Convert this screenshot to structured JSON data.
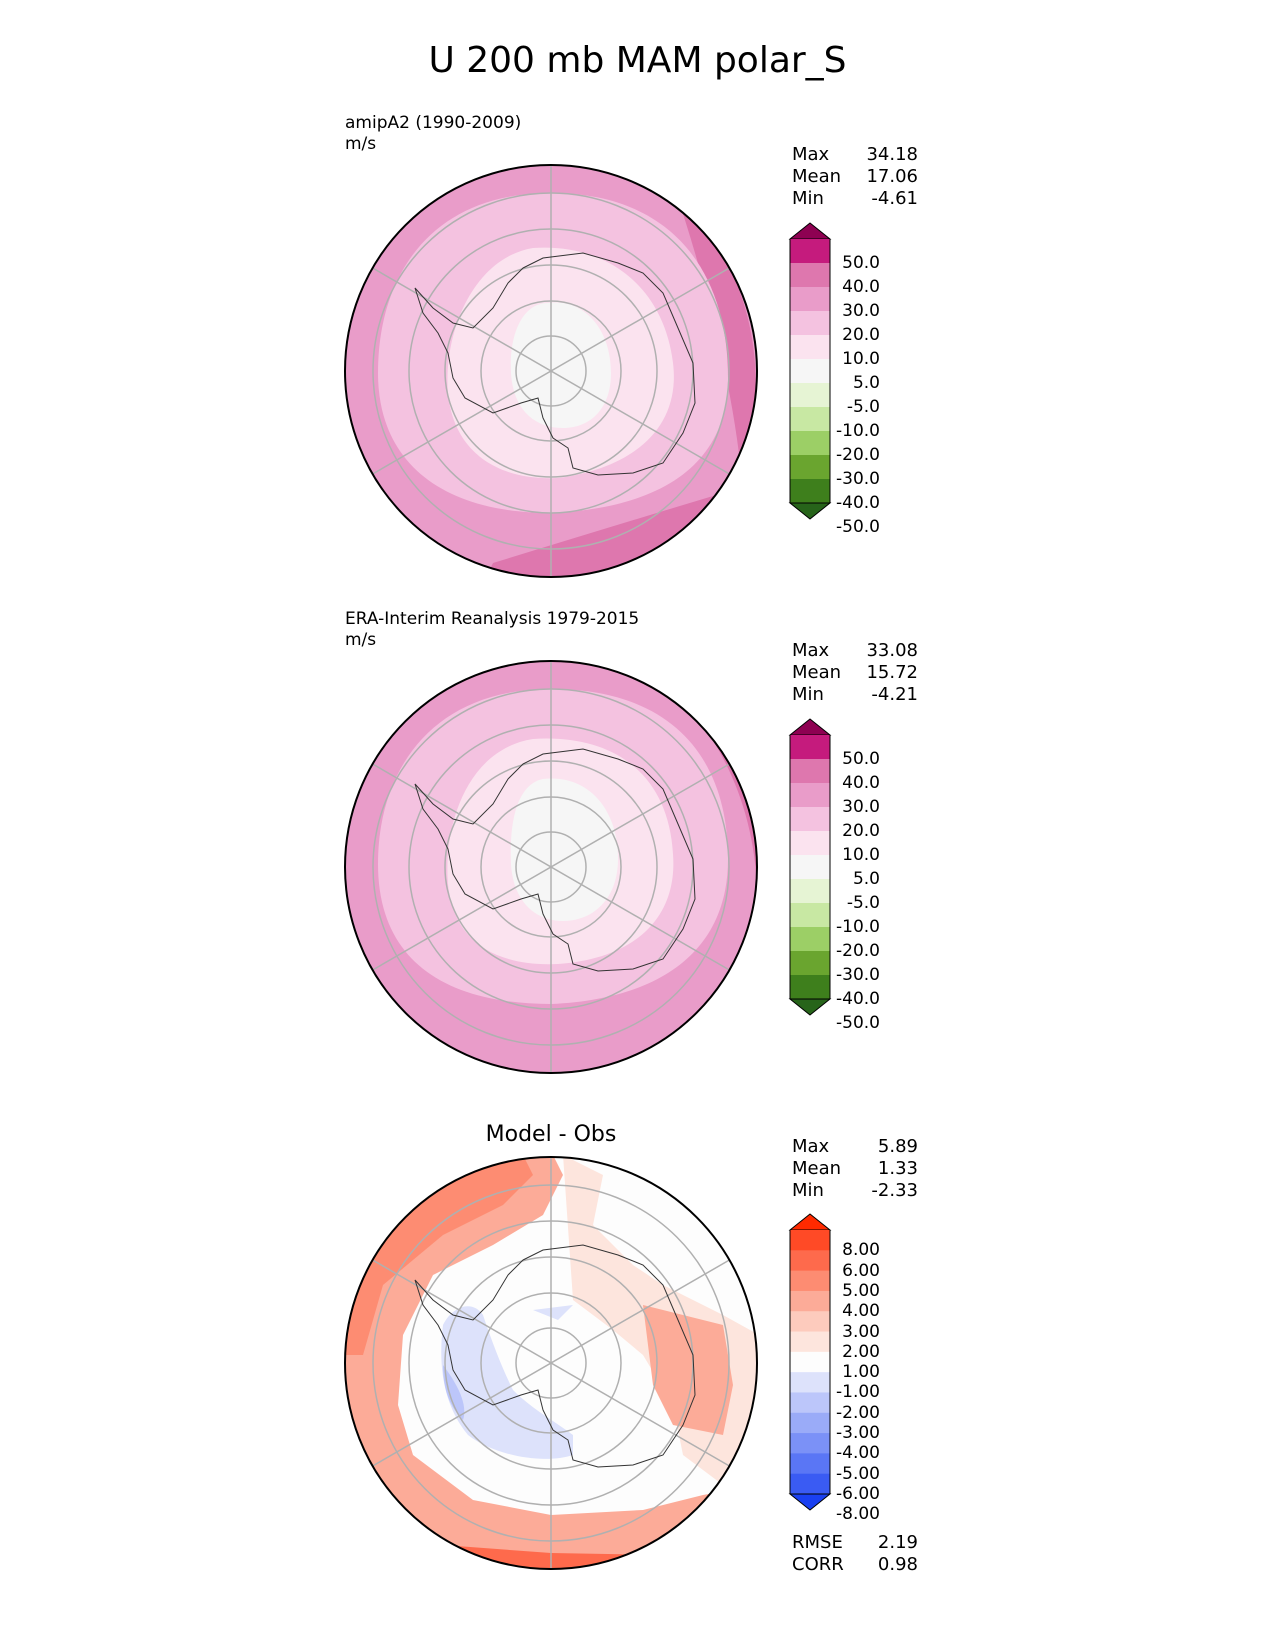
{
  "title": "U 200 mb MAM polar_S",
  "panels": [
    {
      "name": "test",
      "title_lines": [
        "amipA2 (1990-2009)",
        "m/s"
      ],
      "stats": [
        {
          "label": "Max",
          "value": "34.18"
        },
        {
          "label": "Mean",
          "value": "17.06"
        },
        {
          "label": "Min",
          "value": "-4.61"
        }
      ],
      "colorbar": {
        "labels": [
          "50.0",
          "40.0",
          "30.0",
          "20.0",
          "10.0",
          "5.0",
          "-5.0",
          "-10.0",
          "-20.0",
          "-30.0",
          "-40.0",
          "-50.0"
        ],
        "colors": [
          "#8e0152",
          "#c51b7d",
          "#de77ae",
          "#e99cc9",
          "#f4c2e0",
          "#fbe3ef",
          "#f6f6f6",
          "#e6f4d4",
          "#c8e8a3",
          "#9ccf66",
          "#6aa52f",
          "#3e7f1c",
          "#27641a"
        ]
      }
    },
    {
      "name": "reference",
      "title_lines": [
        "ERA-Interim Reanalysis 1979-2015",
        "m/s"
      ],
      "stats": [
        {
          "label": "Max",
          "value": "33.08"
        },
        {
          "label": "Mean",
          "value": "15.72"
        },
        {
          "label": "Min",
          "value": "-4.21"
        }
      ],
      "colorbar": {
        "labels": [
          "50.0",
          "40.0",
          "30.0",
          "20.0",
          "10.0",
          "5.0",
          "-5.0",
          "-10.0",
          "-20.0",
          "-30.0",
          "-40.0",
          "-50.0"
        ],
        "colors": [
          "#8e0152",
          "#c51b7d",
          "#de77ae",
          "#e99cc9",
          "#f4c2e0",
          "#fbe3ef",
          "#f6f6f6",
          "#e6f4d4",
          "#c8e8a3",
          "#9ccf66",
          "#6aa52f",
          "#3e7f1c",
          "#27641a"
        ]
      }
    },
    {
      "name": "difference",
      "centered_title": "Model - Obs",
      "stats": [
        {
          "label": "Max",
          "value": "5.89"
        },
        {
          "label": "Mean",
          "value": "1.33"
        },
        {
          "label": "Min",
          "value": "-2.33"
        }
      ],
      "metrics": [
        {
          "label": "RMSE",
          "value": "2.19"
        },
        {
          "label": "CORR",
          "value": "0.98"
        }
      ],
      "colorbar": {
        "labels": [
          "8.00",
          "6.00",
          "5.00",
          "4.00",
          "3.00",
          "2.00",
          "1.00",
          "-1.00",
          "-2.00",
          "-3.00",
          "-4.00",
          "-5.00",
          "-6.00",
          "-8.00"
        ],
        "colors": [
          "#ff2a00",
          "#ff4a26",
          "#fe6a4c",
          "#fd8c72",
          "#fcab98",
          "#fdcbbd",
          "#fde5dd",
          "#fdfdfd",
          "#dde2fb",
          "#bcc6fa",
          "#9aabf8",
          "#7b91f7",
          "#5a76f5",
          "#3a5bf3",
          "#1a40f1"
        ]
      }
    }
  ],
  "chart_data": [
    {
      "type": "heatmap",
      "subtype": "south-polar-stereographic",
      "title": "amipA2 (1990-2009)",
      "units": "m/s",
      "stats": {
        "max": 34.18,
        "mean": 17.06,
        "min": -4.61
      },
      "levels": [
        -50,
        -40,
        -30,
        -20,
        -10,
        -5,
        5,
        10,
        20,
        30,
        40,
        50
      ],
      "field_bands": [
        {
          "region": "outer-ring",
          "range": [
            20,
            30
          ]
        },
        {
          "region": "edge-patches",
          "range": [
            30,
            40
          ]
        },
        {
          "region": "mid-ring",
          "range": [
            10,
            20
          ]
        },
        {
          "region": "inner-ring",
          "range": [
            5,
            10
          ]
        },
        {
          "region": "core",
          "range": [
            -5,
            5
          ]
        }
      ]
    },
    {
      "type": "heatmap",
      "subtype": "south-polar-stereographic",
      "title": "ERA-Interim Reanalysis 1979-2015",
      "units": "m/s",
      "stats": {
        "max": 33.08,
        "mean": 15.72,
        "min": -4.21
      },
      "levels": [
        -50,
        -40,
        -30,
        -20,
        -10,
        -5,
        5,
        10,
        20,
        30,
        40,
        50
      ],
      "field_bands": [
        {
          "region": "outer-ring",
          "range": [
            20,
            30
          ]
        },
        {
          "region": "edge-patches",
          "range": [
            30,
            40
          ]
        },
        {
          "region": "mid-ring",
          "range": [
            10,
            20
          ]
        },
        {
          "region": "inner-ring",
          "range": [
            5,
            10
          ]
        },
        {
          "region": "core",
          "range": [
            -5,
            5
          ]
        }
      ]
    },
    {
      "type": "heatmap",
      "subtype": "south-polar-stereographic",
      "title": "Model - Obs",
      "stats": {
        "max": 5.89,
        "mean": 1.33,
        "min": -2.33
      },
      "metrics": {
        "rmse": 2.19,
        "corr": 0.98
      },
      "levels": [
        -8,
        -6,
        -5,
        -4,
        -3,
        -2,
        -1,
        1,
        2,
        3,
        4,
        5,
        6,
        8
      ]
    }
  ]
}
